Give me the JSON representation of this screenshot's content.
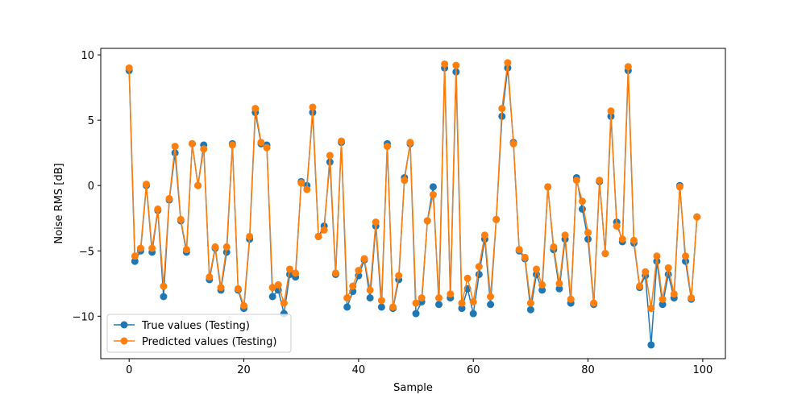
{
  "chart_data": {
    "type": "line",
    "title": "",
    "xlabel": "Sample",
    "ylabel": "Noise RMS [dB]",
    "xlim": [
      -4.95,
      103.95
    ],
    "ylim": [
      -13.25,
      10.5
    ],
    "xticks": [
      0,
      20,
      40,
      60,
      80,
      100
    ],
    "yticks": [
      10,
      5,
      0,
      -5,
      -10
    ],
    "grid": false,
    "legend_position": "lower-left",
    "x": [
      0,
      1,
      2,
      3,
      4,
      5,
      6,
      7,
      8,
      9,
      10,
      11,
      12,
      13,
      14,
      15,
      16,
      17,
      18,
      19,
      20,
      21,
      22,
      23,
      24,
      25,
      26,
      27,
      28,
      29,
      30,
      31,
      32,
      33,
      34,
      35,
      36,
      37,
      38,
      39,
      40,
      41,
      42,
      43,
      44,
      45,
      46,
      47,
      48,
      49,
      50,
      51,
      52,
      53,
      54,
      55,
      56,
      57,
      58,
      59,
      60,
      61,
      62,
      63,
      64,
      65,
      66,
      67,
      68,
      69,
      70,
      71,
      72,
      73,
      74,
      75,
      76,
      77,
      78,
      79,
      80,
      81,
      82,
      83,
      84,
      85,
      86,
      87,
      88,
      89,
      90,
      91,
      92,
      93,
      94,
      95,
      96,
      97,
      98,
      99
    ],
    "series": [
      {
        "name": "True values (Testing)",
        "color": "#1f77b4",
        "values": [
          8.8,
          -5.8,
          -5.0,
          0.0,
          -5.1,
          -1.9,
          -8.5,
          -1.1,
          2.5,
          -2.7,
          -5.1,
          3.2,
          0.0,
          3.1,
          -7.2,
          -4.8,
          -8.0,
          -5.1,
          3.2,
          -8.0,
          -9.4,
          -4.1,
          5.6,
          3.2,
          3.1,
          -8.5,
          -8.0,
          -9.8,
          -6.8,
          -7.0,
          0.3,
          0.0,
          5.6,
          -3.9,
          -3.1,
          1.8,
          -6.8,
          3.3,
          -9.3,
          -8.1,
          -6.9,
          -5.7,
          -8.6,
          -3.1,
          -9.3,
          3.2,
          -9.4,
          -7.2,
          0.6,
          3.2,
          -9.8,
          -8.9,
          -2.7,
          -0.1,
          -9.1,
          9.0,
          -8.6,
          8.7,
          -9.4,
          -7.9,
          -9.8,
          -6.8,
          -4.1,
          -9.1,
          -2.6,
          5.3,
          9.0,
          3.3,
          -5.0,
          -5.6,
          -9.5,
          -6.8,
          -8.0,
          -0.1,
          -4.9,
          -7.9,
          -4.1,
          -9.0,
          0.6,
          -1.8,
          -4.1,
          -9.1,
          0.3,
          -5.2,
          5.3,
          -2.8,
          -4.3,
          8.8,
          -4.4,
          -7.8,
          -6.9,
          -12.2,
          -5.8,
          -9.1,
          -6.8,
          -8.6,
          0.0,
          -5.8,
          -8.7,
          -2.4
        ]
      },
      {
        "name": "Predicted values (Testing)",
        "color": "#ff7f0e",
        "values": [
          9.0,
          -5.4,
          -4.8,
          0.1,
          -4.8,
          -1.8,
          -7.7,
          -1.0,
          3.0,
          -2.6,
          -4.9,
          3.2,
          0.0,
          2.8,
          -7.0,
          -4.7,
          -7.8,
          -4.7,
          3.1,
          -7.9,
          -9.2,
          -3.9,
          5.9,
          3.3,
          2.9,
          -7.8,
          -7.6,
          -9.0,
          -6.4,
          -6.7,
          0.2,
          -0.3,
          6.0,
          -3.9,
          -3.4,
          2.3,
          -6.7,
          3.4,
          -8.6,
          -7.7,
          -6.5,
          -5.6,
          -8.0,
          -2.8,
          -8.8,
          3.0,
          -9.3,
          -6.9,
          0.4,
          3.3,
          -9.0,
          -8.6,
          -2.7,
          -0.7,
          -8.6,
          9.3,
          -8.3,
          9.2,
          -9.0,
          -7.1,
          -8.9,
          -6.2,
          -3.8,
          -8.5,
          -2.6,
          5.9,
          9.4,
          3.2,
          -4.9,
          -5.5,
          -9.0,
          -6.4,
          -7.6,
          -0.1,
          -4.7,
          -7.5,
          -3.8,
          -8.7,
          0.4,
          -1.2,
          -3.6,
          -9.0,
          0.4,
          -5.2,
          5.7,
          -3.1,
          -4.1,
          9.1,
          -4.2,
          -7.7,
          -6.6,
          -9.4,
          -5.4,
          -8.7,
          -6.3,
          -8.3,
          -0.1,
          -5.4,
          -8.6,
          -2.4
        ]
      }
    ]
  }
}
